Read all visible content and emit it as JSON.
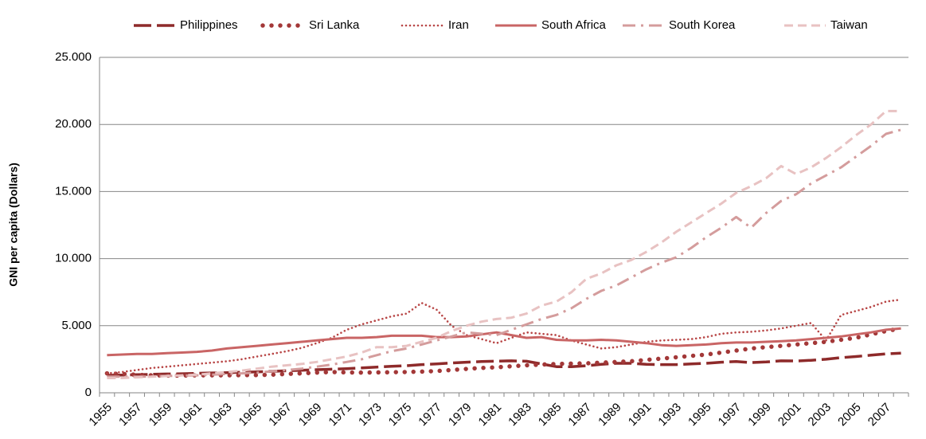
{
  "chart_data": {
    "type": "line",
    "y_label": "GNI per capita (Dollars)",
    "categories": [
      "1955",
      null,
      "1957",
      null,
      "1959",
      null,
      "1961",
      null,
      "1963",
      null,
      "1965",
      null,
      "1967",
      null,
      "1969",
      null,
      "1971",
      null,
      "1973",
      null,
      "1975",
      null,
      "1977",
      null,
      "1979",
      null,
      "1981",
      null,
      "1983",
      null,
      "1985",
      null,
      "1987",
      null,
      "1989",
      null,
      "1991",
      null,
      "1993",
      null,
      "1995",
      null,
      "1997",
      null,
      "1999",
      null,
      "2001",
      null,
      "2003",
      null,
      "2005",
      null,
      "2007",
      null
    ],
    "ylim": [
      0,
      25000
    ],
    "yticks": [
      0,
      {
        "value": 5000,
        "label": "5.000"
      },
      {
        "value": 10000,
        "label": "10.000"
      },
      {
        "value": 15000,
        "label": "15.000"
      },
      {
        "value": 20000,
        "label": "20.000"
      },
      {
        "value": 25000,
        "label": "25.000"
      }
    ],
    "grid": true,
    "legend": "top",
    "series": [
      {
        "name": "Philippines",
        "color": "#8e2a2a",
        "dash": "long-dash",
        "values": [
          1300,
          1320,
          1350,
          1380,
          1400,
          1420,
          1450,
          1480,
          1500,
          1530,
          1560,
          1600,
          1640,
          1680,
          1720,
          1760,
          1800,
          1850,
          1920,
          1980,
          2020,
          2100,
          2150,
          2220,
          2280,
          2330,
          2360,
          2380,
          2350,
          2150,
          1950,
          1950,
          2020,
          2120,
          2200,
          2200,
          2120,
          2100,
          2100,
          2150,
          2200,
          2280,
          2330,
          2250,
          2300,
          2380,
          2370,
          2420,
          2500,
          2620,
          2700,
          2800,
          2900,
          2950
        ]
      },
      {
        "name": "Sri Lanka",
        "color": "#a33838",
        "dash": "big-dots",
        "values": [
          1450,
          1400,
          1350,
          1300,
          1280,
          1280,
          1300,
          1300,
          1300,
          1320,
          1320,
          1350,
          1400,
          1450,
          1500,
          1550,
          1520,
          1500,
          1520,
          1530,
          1550,
          1580,
          1620,
          1700,
          1780,
          1850,
          1900,
          1980,
          2050,
          2100,
          2150,
          2180,
          2200,
          2250,
          2300,
          2350,
          2450,
          2550,
          2650,
          2750,
          2850,
          3000,
          3150,
          3300,
          3400,
          3500,
          3600,
          3700,
          3800,
          3950,
          4100,
          4350,
          4600,
          4800
        ]
      },
      {
        "name": "Iran",
        "color": "#b84646",
        "dash": "small-dots",
        "values": [
          1450,
          1550,
          1700,
          1850,
          1950,
          2050,
          2150,
          2250,
          2350,
          2500,
          2700,
          2900,
          3100,
          3350,
          3700,
          4100,
          4700,
          5100,
          5400,
          5700,
          5900,
          6700,
          6200,
          5000,
          4300,
          4000,
          3700,
          4100,
          4500,
          4400,
          4300,
          3900,
          3600,
          3300,
          3400,
          3600,
          3800,
          3900,
          3950,
          4000,
          4150,
          4400,
          4500,
          4550,
          4650,
          4800,
          5000,
          5200,
          3900,
          5800,
          6100,
          6400,
          6800,
          6950
        ]
      },
      {
        "name": "South Africa",
        "color": "#c96565",
        "dash": "solid",
        "values": [
          2800,
          2850,
          2900,
          2900,
          2950,
          3000,
          3050,
          3150,
          3300,
          3400,
          3500,
          3600,
          3700,
          3800,
          3900,
          4000,
          4100,
          4100,
          4150,
          4250,
          4250,
          4250,
          4150,
          4150,
          4200,
          4350,
          4500,
          4300,
          4100,
          4150,
          3950,
          3900,
          3900,
          3950,
          3900,
          3800,
          3700,
          3550,
          3500,
          3550,
          3600,
          3700,
          3750,
          3750,
          3800,
          3850,
          3900,
          4000,
          4100,
          4200,
          4350,
          4500,
          4700,
          4800
        ]
      },
      {
        "name": "South Korea",
        "color": "#d49c9c",
        "dash": "dash-dot",
        "values": [
          1200,
          1200,
          1200,
          1220,
          1250,
          1280,
          1300,
          1350,
          1400,
          1450,
          1500,
          1600,
          1700,
          1800,
          1950,
          2100,
          2300,
          2500,
          2800,
          3100,
          3300,
          3600,
          3900,
          4200,
          4500,
          4400,
          4300,
          4700,
          5100,
          5500,
          5800,
          6300,
          7000,
          7600,
          8000,
          8600,
          9200,
          9700,
          10100,
          10800,
          11600,
          12300,
          13100,
          12300,
          13400,
          14300,
          14800,
          15600,
          16200,
          16800,
          17600,
          18400,
          19300,
          19600
        ]
      },
      {
        "name": "Taiwan",
        "color": "#e8c2c2",
        "dash": "dash",
        "values": [
          1100,
          1100,
          1150,
          1200,
          1250,
          1300,
          1350,
          1450,
          1550,
          1650,
          1800,
          1950,
          2050,
          2150,
          2300,
          2500,
          2700,
          3000,
          3400,
          3400,
          3500,
          3800,
          4100,
          4600,
          5000,
          5300,
          5500,
          5600,
          5900,
          6500,
          6800,
          7500,
          8500,
          8900,
          9500,
          9900,
          10500,
          11200,
          12000,
          12700,
          13400,
          14100,
          14900,
          15400,
          16000,
          16900,
          16300,
          16800,
          17500,
          18300,
          19200,
          20000,
          21000,
          21000
        ]
      }
    ]
  }
}
